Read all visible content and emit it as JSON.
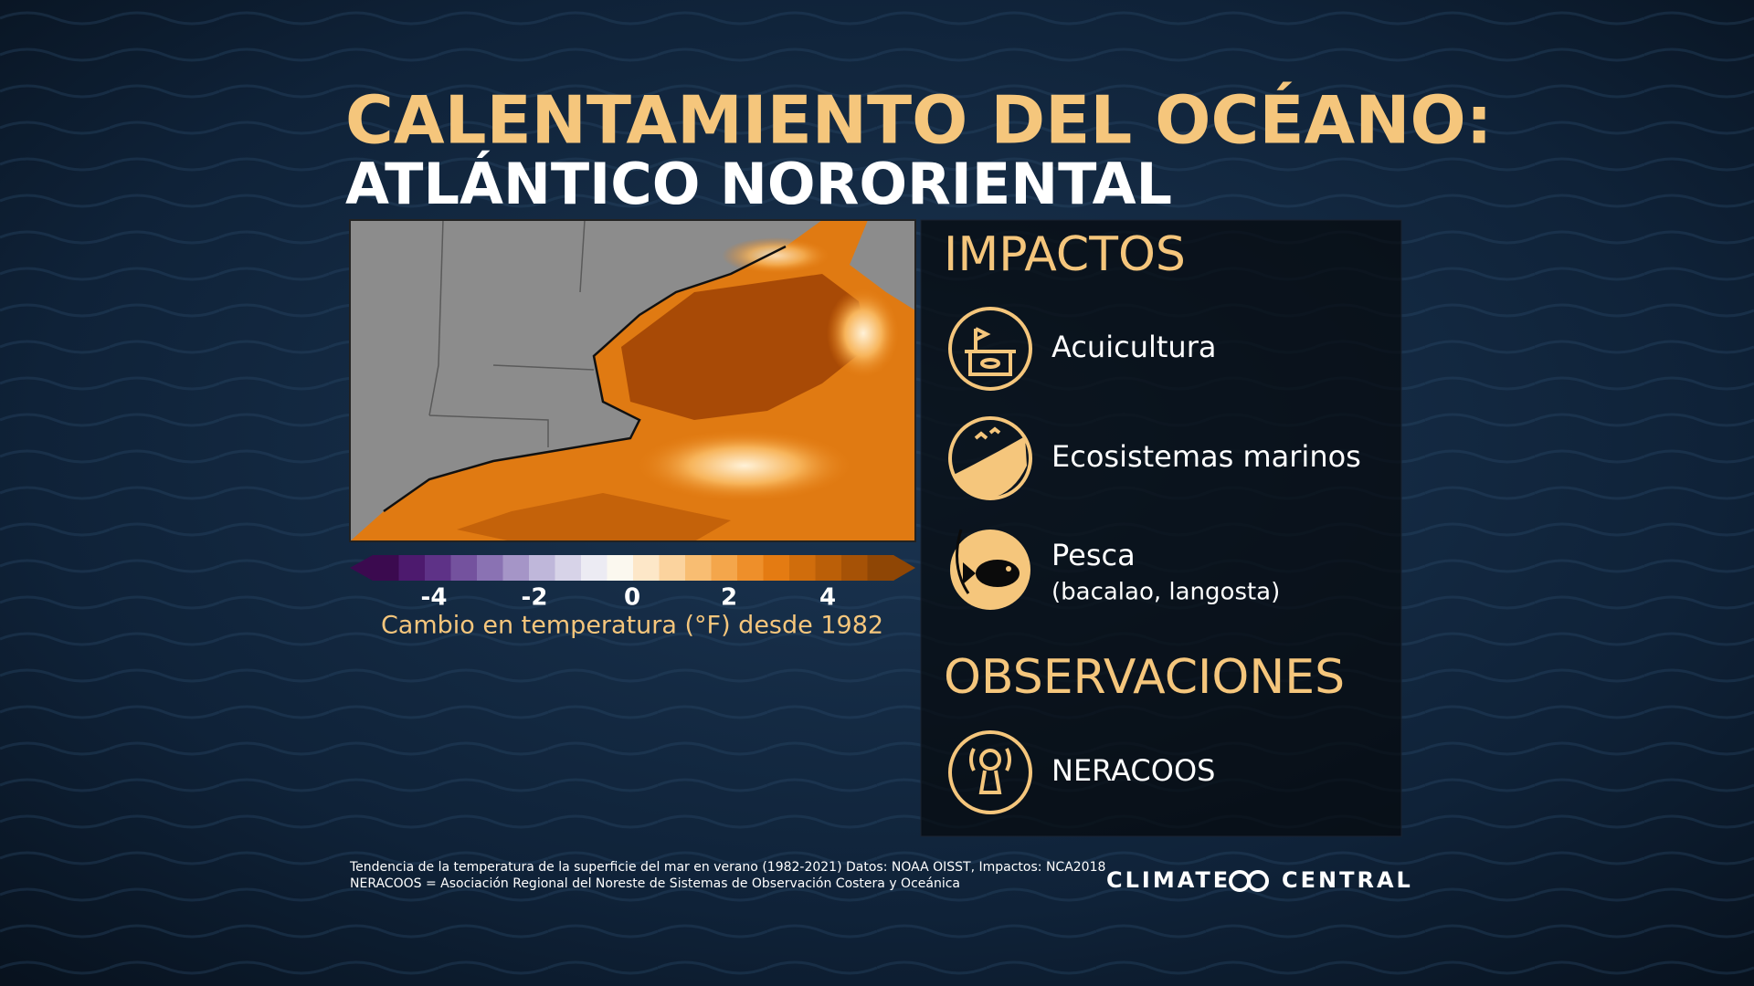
{
  "title": {
    "line1": "CALENTAMIENTO DEL OCÉANO:",
    "line2": "ATLÁNTICO NORORIENTAL"
  },
  "legend": {
    "ticks": [
      -4,
      -2,
      0,
      2,
      4
    ],
    "caption": "Cambio en temperatura (°F) desde 1982"
  },
  "impacts": {
    "heading": "IMPACTOS",
    "items": [
      {
        "label": "Acuicultura"
      },
      {
        "label": "Ecosistemas marinos"
      },
      {
        "label": "Pesca",
        "note": "(bacalao, langosta)"
      }
    ]
  },
  "observations": {
    "heading": "OBSERVACIONES",
    "items": [
      {
        "label": "NERACOOS"
      }
    ]
  },
  "footer": {
    "lines": [
      "Tendencia de la temperatura de la superficie del mar en verano (1982-2021) Datos: NOAA OISST, Impactos: NCA2018",
      "NERACOOS = Asociación Regional del Noreste de Sistemas de Observación Costera y Oceánica"
    ],
    "logo": [
      "CLIMATE",
      "CENTRAL"
    ]
  }
}
